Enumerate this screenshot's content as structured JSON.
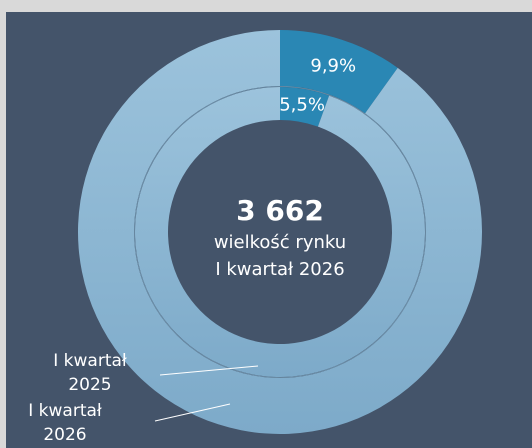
{
  "chart_data": {
    "type": "donut",
    "center_value": {
      "value": 3662,
      "label": "3 662"
    },
    "center_text": [
      "wielkość rynku",
      "I kwartał 2026"
    ],
    "series": [
      {
        "name": "I kwartał 2026",
        "ring": "outer",
        "values": [
          9.9,
          90.1
        ],
        "value_labels": [
          "9,9%",
          null
        ],
        "colors": [
          "#2a87b4",
          "#93bcd8"
        ]
      },
      {
        "name": "I kwartał 2025",
        "ring": "inner",
        "values": [
          5.5,
          94.5
        ],
        "value_labels": [
          "5,5%",
          null
        ],
        "colors": [
          "#2a87b4",
          "#93bcd8"
        ]
      }
    ]
  }
}
